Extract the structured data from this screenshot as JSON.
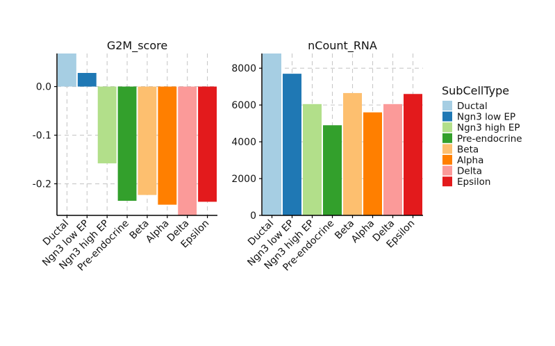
{
  "chart_data": [
    {
      "type": "bar",
      "title": "G2M_score",
      "categories": [
        "Ductal",
        "Ngn3 low EP",
        "Ngn3 high EP",
        "Pre-endocrine",
        "Beta",
        "Alpha",
        "Delta",
        "Epsilon"
      ],
      "values": [
        0.07,
        0.028,
        -0.158,
        -0.235,
        -0.223,
        -0.243,
        -0.265,
        -0.237
      ],
      "ylim": [
        -0.265,
        0.068
      ],
      "yticks": [
        0.0,
        -0.1,
        -0.2
      ],
      "ytick_labels": [
        "0.0",
        "-0.1",
        "-0.2"
      ],
      "grid": true,
      "xlabel": "",
      "ylabel": ""
    },
    {
      "type": "bar",
      "title": "nCount_RNA",
      "categories": [
        "Ductal",
        "Ngn3 low EP",
        "Ngn3 high EP",
        "Pre-endocrine",
        "Beta",
        "Alpha",
        "Delta",
        "Epsilon"
      ],
      "values": [
        8800,
        7700,
        6050,
        4900,
        6650,
        5600,
        6050,
        6600
      ],
      "ylim": [
        0,
        8800
      ],
      "yticks": [
        0,
        2000,
        4000,
        6000,
        8000
      ],
      "ytick_labels": [
        "0",
        "2000",
        "4000",
        "6000",
        "8000"
      ],
      "grid": true,
      "xlabel": "",
      "ylabel": ""
    }
  ],
  "legend": {
    "title": "SubCellType",
    "placement": "right",
    "items": [
      {
        "label": "Ductal",
        "color": "#a6cee3"
      },
      {
        "label": "Ngn3 low EP",
        "color": "#1f78b4"
      },
      {
        "label": "Ngn3 high EP",
        "color": "#b2df8a"
      },
      {
        "label": "Pre-endocrine",
        "color": "#33a02c"
      },
      {
        "label": "Beta",
        "color": "#fdbf6f"
      },
      {
        "label": "Alpha",
        "color": "#ff7f00"
      },
      {
        "label": "Delta",
        "color": "#fb9a99"
      },
      {
        "label": "Epsilon",
        "color": "#e31a1c"
      }
    ]
  }
}
